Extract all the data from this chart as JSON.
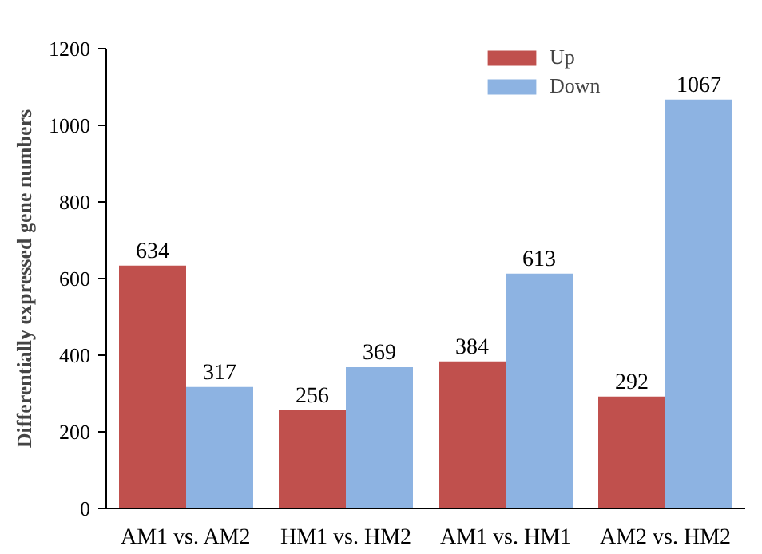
{
  "chart_data": {
    "type": "bar",
    "ylabel": "Differentially expressed gene numbers",
    "categories": [
      "AM1 vs. AM2",
      "HM1 vs. HM2",
      "AM1 vs. HM1",
      "AM2 vs. HM2"
    ],
    "series": [
      {
        "name": "Up",
        "color": "#c0504d",
        "values": [
          634,
          256,
          384,
          292
        ]
      },
      {
        "name": "Down",
        "color": "#8db3e2",
        "values": [
          317,
          369,
          613,
          1067
        ]
      }
    ],
    "ylim": [
      0,
      1200
    ],
    "yticks": [
      0,
      200,
      400,
      600,
      800,
      1000,
      1200
    ],
    "grid": false,
    "legend": "top right",
    "data_labels": true
  }
}
